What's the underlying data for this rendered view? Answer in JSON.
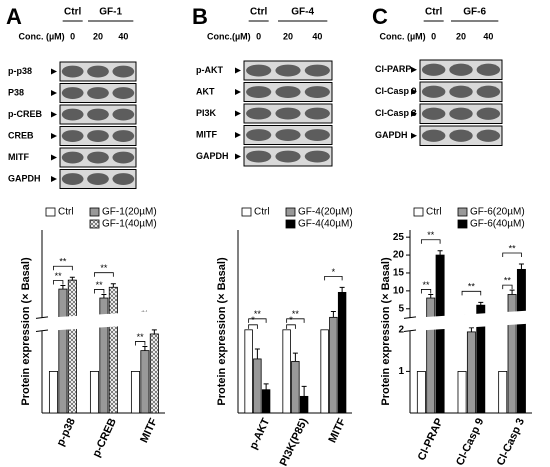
{
  "chart_data": [
    {
      "type": "bar",
      "panel_label": "A",
      "ylabel": "Protein expression (× Basal)",
      "categories": [
        "p-p38",
        "p-CREB",
        "MITF"
      ],
      "series": [
        {
          "name": "Ctrl",
          "color": "#ffffff",
          "values": [
            1,
            1,
            1
          ]
        },
        {
          "name": "GF-1(20µM)",
          "color": "#999999",
          "values": [
            10.5,
            8,
            1.5
          ],
          "errors": [
            1,
            1,
            0.1
          ]
        },
        {
          "name": "GF-1(40µM)",
          "color": "#ffffff",
          "pattern": "crosshatch",
          "values": [
            13,
            11,
            1.9
          ],
          "errors": [
            0.8,
            1,
            0.1
          ]
        }
      ],
      "ylim": [
        0,
        27
      ],
      "axis_break": [
        2.2,
        4
      ],
      "significance": [
        [
          "**",
          "**"
        ],
        [
          "**",
          "**"
        ],
        [
          "**",
          "**"
        ]
      ],
      "blot": {
        "groups": [
          "Ctrl",
          "GF-1"
        ],
        "conc_label": "Conc. (µM)",
        "lanes": [
          "0",
          "20",
          "40"
        ],
        "rows": [
          "p-p38",
          "P38",
          "p-CREB",
          "CREB",
          "MITF",
          "GAPDH"
        ]
      }
    },
    {
      "type": "bar",
      "panel_label": "B",
      "ylabel": "Protein expression (× Basal)",
      "categories": [
        "p-AKT",
        "PI3K(P85)",
        "MITF"
      ],
      "series": [
        {
          "name": "Ctrl",
          "color": "#ffffff",
          "values": [
            1,
            1,
            1
          ]
        },
        {
          "name": "GF-4(20µM)",
          "color": "#999999",
          "values": [
            0.65,
            0.62,
            1.15
          ],
          "errors": [
            0.12,
            0.1,
            0.07
          ]
        },
        {
          "name": "GF-4(40µM)",
          "color": "#000000",
          "values": [
            0.28,
            0.2,
            1.45
          ],
          "errors": [
            0.07,
            0.12,
            0.06
          ]
        }
      ],
      "ylim": [
        0,
        2.2
      ],
      "significance": [
        [
          "*",
          "**"
        ],
        [
          "*",
          "**"
        ],
        [
          null,
          "*"
        ]
      ],
      "blot": {
        "groups": [
          "Ctrl",
          "GF-4"
        ],
        "conc_label": "Conc.(µM)",
        "lanes": [
          "0",
          "20",
          "40"
        ],
        "rows": [
          "p-AKT",
          "AKT",
          "PI3K",
          "MITF",
          "GAPDH"
        ]
      }
    },
    {
      "type": "bar",
      "panel_label": "C",
      "ylabel": "Protein expression (× Basal)",
      "categories": [
        "Cl-PRAP",
        "Cl-Casp 9",
        "Cl-Casp 3"
      ],
      "series": [
        {
          "name": "Ctrl",
          "color": "#ffffff",
          "values": [
            1,
            1,
            1
          ]
        },
        {
          "name": "GF-6(20µM)",
          "color": "#999999",
          "values": [
            8,
            1.95,
            9
          ],
          "errors": [
            1,
            0.1,
            1.2
          ]
        },
        {
          "name": "GF-6(40µM)",
          "color": "#000000",
          "values": [
            20,
            6,
            16
          ],
          "errors": [
            1.2,
            0.8,
            1.5
          ]
        }
      ],
      "ylim": [
        0,
        27
      ],
      "axis_break": [
        2.2,
        4
      ],
      "yticks": [
        1,
        2,
        5,
        10,
        15,
        20,
        25
      ],
      "significance": [
        [
          "**",
          "**"
        ],
        [
          "**",
          "**"
        ],
        [
          "**",
          "**"
        ]
      ],
      "blot": {
        "groups": [
          "Ctrl",
          "GF-6"
        ],
        "conc_label": "Conc. (µM)",
        "lanes": [
          "0",
          "20",
          "40"
        ],
        "rows": [
          "Cl-PARP",
          "Cl-Casp 9",
          "Cl-Casp 3",
          "GAPDH"
        ]
      }
    }
  ]
}
